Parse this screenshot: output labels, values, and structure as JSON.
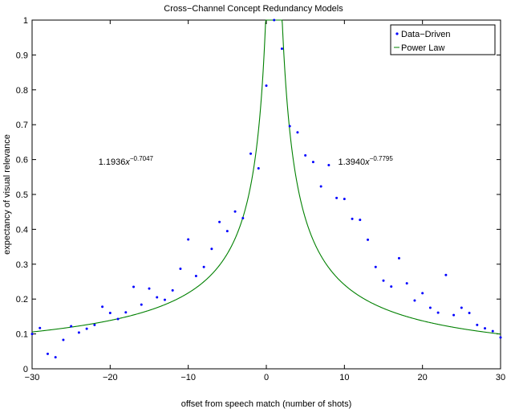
{
  "chart_data": {
    "type": "scatter",
    "title": "Cross−Channel Concept Redundancy Models",
    "xlabel": "offset from speech match (number of shots)",
    "ylabel": "expectancy of visual relevance",
    "xlim": [
      -30,
      30
    ],
    "ylim": [
      0,
      1
    ],
    "xticks": [
      -30,
      -20,
      -10,
      0,
      10,
      20,
      30
    ],
    "yticks": [
      0,
      0.1,
      0.2,
      0.3,
      0.4,
      0.5,
      0.6,
      0.7,
      0.8,
      0.9,
      1
    ],
    "xtick_labels": [
      "−30",
      "−20",
      "−10",
      "0",
      "10",
      "20",
      "30"
    ],
    "ytick_labels": [
      "0",
      "0.1",
      "0.2",
      "0.3",
      "0.4",
      "0.5",
      "0.6",
      "0.7",
      "0.8",
      "0.9",
      "1"
    ],
    "grid": false,
    "legend_position": "top-right",
    "colors": {
      "data_driven": "#0000ff",
      "power_law": "#008000",
      "axes": "#000000"
    },
    "series": [
      {
        "name": "Data−Driven",
        "kind": "scatter",
        "x": [
          -30,
          -29,
          -28,
          -27,
          -26,
          -25,
          -24,
          -23,
          -22,
          -21,
          -20,
          -19,
          -18,
          -17,
          -16,
          -15,
          -14,
          -13,
          -12,
          -11,
          -10,
          -9,
          -8,
          -7,
          -6,
          -5,
          -4,
          -3,
          -2,
          -1,
          0,
          1,
          2,
          3,
          4,
          5,
          6,
          7,
          8,
          9,
          10,
          11,
          12,
          13,
          14,
          15,
          16,
          17,
          18,
          19,
          20,
          21,
          22,
          23,
          24,
          25,
          26,
          27,
          28,
          29,
          30
        ],
        "y": [
          0.1,
          0.117,
          0.043,
          0.033,
          0.083,
          0.122,
          0.104,
          0.115,
          0.126,
          0.178,
          0.16,
          0.143,
          0.162,
          0.235,
          0.184,
          0.23,
          0.205,
          0.198,
          0.225,
          0.287,
          0.371,
          0.266,
          0.292,
          0.344,
          0.421,
          0.395,
          0.451,
          0.432,
          0.617,
          0.575,
          0.812,
          1.0,
          0.918,
          0.696,
          0.678,
          0.612,
          0.593,
          0.523,
          0.584,
          0.49,
          0.487,
          0.43,
          0.427,
          0.37,
          0.292,
          0.253,
          0.236,
          0.317,
          0.245,
          0.196,
          0.217,
          0.175,
          0.161,
          0.269,
          0.154,
          0.175,
          0.16,
          0.126,
          0.116,
          0.108,
          0.09
        ]
      },
      {
        "name": "Power Law",
        "kind": "line",
        "left_model": {
          "a": 1.1936,
          "b": -0.7047
        },
        "right_model": {
          "a": 1.394,
          "b": -0.7795
        },
        "peak_x": 1
      }
    ],
    "annotations": [
      {
        "coef": "1.1936",
        "var": "x",
        "exponent": "−0.7047",
        "anchor_x": -21.5,
        "anchor_y": 0.585
      },
      {
        "coef": "1.3940",
        "var": "x",
        "exponent": "−0.7795",
        "anchor_x": 9.2,
        "anchor_y": 0.585
      }
    ]
  }
}
